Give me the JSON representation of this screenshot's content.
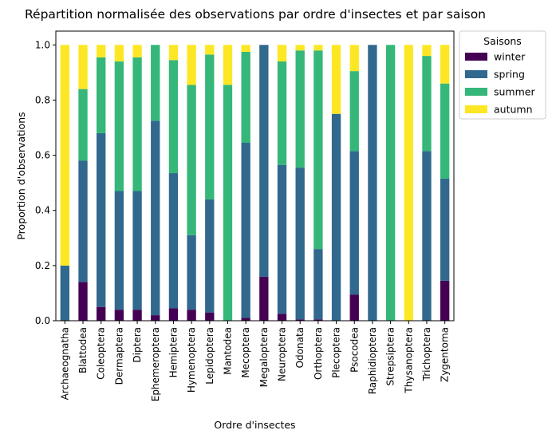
{
  "chart_data": {
    "type": "bar",
    "stacked": true,
    "title": "Répartition normalisée des observations par ordre d'insectes et par saison",
    "xlabel": "Ordre d'insectes",
    "ylabel": "Proportion d'observations",
    "ylim": [
      0,
      1.05
    ],
    "yticks": [
      "0.0",
      "0.2",
      "0.4",
      "0.6",
      "0.8",
      "1.0"
    ],
    "grid": false,
    "legend": {
      "title": "Saisons",
      "placement": "outside top-right"
    },
    "categories": [
      "Archaeognatha",
      "Blattodea",
      "Coleoptera",
      "Dermaptera",
      "Diptera",
      "Ephemeroptera",
      "Hemiptera",
      "Hymenoptera",
      "Lepidoptera",
      "Mantodea",
      "Mecoptera",
      "Megaloptera",
      "Neuroptera",
      "Odonata",
      "Orthoptera",
      "Plecoptera",
      "Psocodea",
      "Raphidioptera",
      "Strepsiptera",
      "Thysanoptera",
      "Trichoptera",
      "Zygentoma"
    ],
    "series": [
      {
        "name": "winter",
        "color": "#440154",
        "values": [
          0.0,
          0.14,
          0.05,
          0.04,
          0.04,
          0.02,
          0.045,
          0.04,
          0.03,
          0.0,
          0.01,
          0.16,
          0.025,
          0.005,
          0.005,
          0.0,
          0.095,
          0.0,
          0.0,
          0.0,
          0.0,
          0.145
        ]
      },
      {
        "name": "spring",
        "color": "#31688e",
        "values": [
          0.2,
          0.44,
          0.63,
          0.43,
          0.43,
          0.705,
          0.49,
          0.27,
          0.41,
          0.0,
          0.635,
          0.84,
          0.54,
          0.55,
          0.255,
          0.75,
          0.52,
          1.0,
          0.0,
          0.0,
          0.615,
          0.37
        ]
      },
      {
        "name": "summer",
        "color": "#35b779",
        "values": [
          0.0,
          0.26,
          0.275,
          0.47,
          0.485,
          0.275,
          0.41,
          0.545,
          0.525,
          0.855,
          0.33,
          0.0,
          0.375,
          0.425,
          0.72,
          0.0,
          0.29,
          0.0,
          1.0,
          0.0,
          0.345,
          0.345
        ]
      },
      {
        "name": "autumn",
        "color": "#fde725",
        "values": [
          0.8,
          0.16,
          0.045,
          0.06,
          0.045,
          0.0,
          0.055,
          0.145,
          0.035,
          0.145,
          0.025,
          0.0,
          0.06,
          0.02,
          0.02,
          0.25,
          0.095,
          0.0,
          0.0,
          1.0,
          0.04,
          0.14
        ]
      }
    ]
  }
}
